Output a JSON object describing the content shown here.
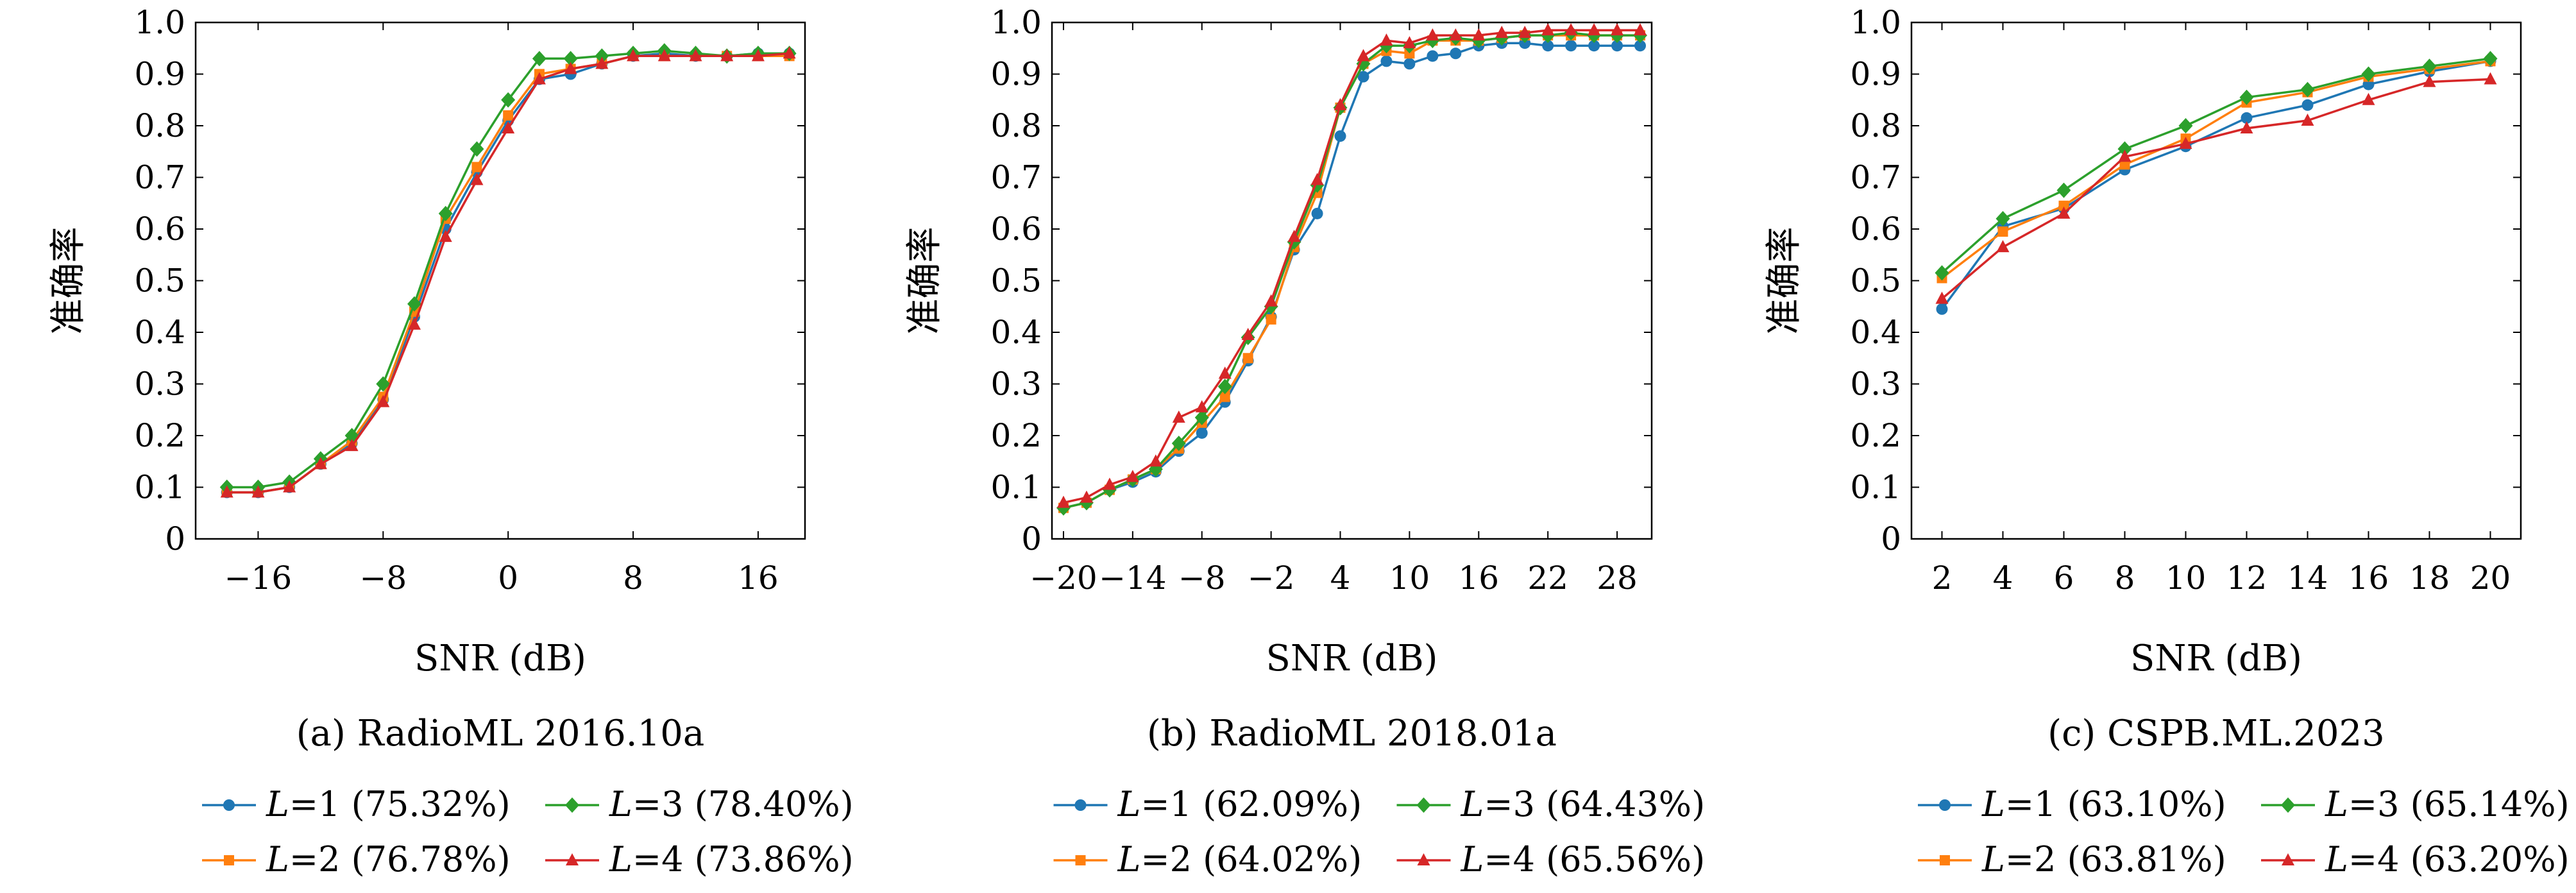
{
  "chart_data": [
    {
      "type": "line",
      "caption": "(a) RadioML 2016.10a",
      "xlabel": "SNR (dB)",
      "ylabel": "准确率",
      "xlim": [
        -20,
        19
      ],
      "ylim": [
        0,
        1.0
      ],
      "xticks": [
        "−16",
        "−8",
        "0",
        "8",
        "16"
      ],
      "yticks": [
        "0",
        "0.1",
        "0.2",
        "0.3",
        "0.4",
        "0.5",
        "0.6",
        "0.7",
        "0.8",
        "0.9",
        "1.0"
      ],
      "x": [
        -18,
        -16,
        -14,
        -12,
        -10,
        -8,
        -6,
        -4,
        -2,
        0,
        2,
        4,
        6,
        8,
        10,
        12,
        14,
        16,
        18
      ],
      "series": [
        {
          "name": "L=1 (75.32%)",
          "values": [
            0.09,
            0.09,
            0.1,
            0.145,
            0.185,
            0.27,
            0.43,
            0.6,
            0.71,
            0.81,
            0.89,
            0.9,
            0.92,
            0.935,
            0.94,
            0.935,
            0.935,
            0.94,
            0.94
          ]
        },
        {
          "name": "L=2 (76.78%)",
          "values": [
            0.09,
            0.09,
            0.1,
            0.145,
            0.19,
            0.275,
            0.44,
            0.62,
            0.72,
            0.82,
            0.9,
            0.91,
            0.92,
            0.935,
            0.935,
            0.935,
            0.935,
            0.935,
            0.935
          ]
        },
        {
          "name": "L=3 (78.40%)",
          "values": [
            0.1,
            0.1,
            0.11,
            0.155,
            0.2,
            0.3,
            0.455,
            0.63,
            0.755,
            0.85,
            0.93,
            0.93,
            0.935,
            0.94,
            0.945,
            0.94,
            0.935,
            0.94,
            0.94
          ]
        },
        {
          "name": "L=4 (73.86%)",
          "values": [
            0.09,
            0.09,
            0.1,
            0.145,
            0.18,
            0.265,
            0.415,
            0.585,
            0.695,
            0.795,
            0.89,
            0.91,
            0.92,
            0.935,
            0.935,
            0.935,
            0.935,
            0.935,
            0.94
          ]
        }
      ]
    },
    {
      "type": "line",
      "caption": "(b) RadioML 2018.01a",
      "xlabel": "SNR (dB)",
      "ylabel": "准确率",
      "xlim": [
        -21,
        31
      ],
      "ylim": [
        0,
        1.0
      ],
      "xticks": [
        "−20",
        "−14",
        "−8",
        "−2",
        "4",
        "10",
        "16",
        "22",
        "28"
      ],
      "yticks": [
        "0",
        "0.1",
        "0.2",
        "0.3",
        "0.4",
        "0.5",
        "0.6",
        "0.7",
        "0.8",
        "0.9",
        "1.0"
      ],
      "x": [
        -20,
        -18,
        -16,
        -14,
        -12,
        -10,
        -8,
        -6,
        -4,
        -2,
        0,
        2,
        4,
        6,
        8,
        10,
        12,
        14,
        16,
        18,
        20,
        22,
        24,
        26,
        28,
        30
      ],
      "series": [
        {
          "name": "L=1 (62.09%)",
          "values": [
            0.06,
            0.07,
            0.095,
            0.11,
            0.13,
            0.17,
            0.205,
            0.265,
            0.345,
            0.43,
            0.56,
            0.63,
            0.78,
            0.895,
            0.925,
            0.92,
            0.935,
            0.94,
            0.955,
            0.96,
            0.96,
            0.955,
            0.955,
            0.955,
            0.955,
            0.955
          ]
        },
        {
          "name": "L=2 (64.02%)",
          "values": [
            0.06,
            0.07,
            0.095,
            0.115,
            0.135,
            0.175,
            0.225,
            0.275,
            0.35,
            0.425,
            0.565,
            0.67,
            0.835,
            0.92,
            0.945,
            0.94,
            0.965,
            0.965,
            0.965,
            0.97,
            0.975,
            0.975,
            0.975,
            0.975,
            0.975,
            0.975
          ]
        },
        {
          "name": "L=3 (64.43%)",
          "values": [
            0.06,
            0.07,
            0.095,
            0.115,
            0.135,
            0.185,
            0.235,
            0.295,
            0.39,
            0.45,
            0.575,
            0.685,
            0.835,
            0.92,
            0.955,
            0.955,
            0.965,
            0.97,
            0.965,
            0.97,
            0.975,
            0.975,
            0.98,
            0.975,
            0.975,
            0.975
          ]
        },
        {
          "name": "L=4 (65.56%)",
          "values": [
            0.07,
            0.08,
            0.105,
            0.12,
            0.15,
            0.235,
            0.255,
            0.32,
            0.395,
            0.46,
            0.585,
            0.695,
            0.84,
            0.935,
            0.965,
            0.96,
            0.975,
            0.975,
            0.975,
            0.98,
            0.98,
            0.985,
            0.985,
            0.985,
            0.985,
            0.985
          ]
        }
      ]
    },
    {
      "type": "line",
      "caption": "(c) CSPB.ML.2023",
      "xlabel": "SNR (dB)",
      "ylabel": "准确率",
      "xlim": [
        1,
        21
      ],
      "ylim": [
        0,
        1.0
      ],
      "xticks": [
        "2",
        "4",
        "6",
        "8",
        "10",
        "12",
        "14",
        "16",
        "18",
        "20"
      ],
      "yticks": [
        "0",
        "0.1",
        "0.2",
        "0.3",
        "0.4",
        "0.5",
        "0.6",
        "0.7",
        "0.8",
        "0.9",
        "1.0"
      ],
      "x": [
        2,
        4,
        6,
        8,
        10,
        12,
        14,
        16,
        18,
        20
      ],
      "series": [
        {
          "name": "L=1 (63.10%)",
          "values": [
            0.445,
            0.605,
            0.64,
            0.715,
            0.76,
            0.815,
            0.84,
            0.88,
            0.905,
            0.925
          ]
        },
        {
          "name": "L=2 (63.81%)",
          "values": [
            0.505,
            0.595,
            0.645,
            0.725,
            0.775,
            0.845,
            0.865,
            0.895,
            0.91,
            0.925
          ]
        },
        {
          "name": "L=3 (65.14%)",
          "values": [
            0.515,
            0.62,
            0.675,
            0.755,
            0.8,
            0.855,
            0.87,
            0.9,
            0.915,
            0.93
          ]
        },
        {
          "name": "L=4 (63.20%)",
          "values": [
            0.465,
            0.565,
            0.63,
            0.74,
            0.765,
            0.795,
            0.81,
            0.85,
            0.885,
            0.89
          ]
        }
      ]
    }
  ],
  "legend": {
    "italic_var": "L",
    "items": [
      {
        "eq": "=1",
        "paren": "(75.32%)"
      }
    ]
  },
  "series_style": [
    {
      "color": "#1f77b4",
      "marker": "circle"
    },
    {
      "color": "#ff7f0e",
      "marker": "square"
    },
    {
      "color": "#2ca02c",
      "marker": "diamond"
    },
    {
      "color": "#d62728",
      "marker": "triangle"
    }
  ]
}
